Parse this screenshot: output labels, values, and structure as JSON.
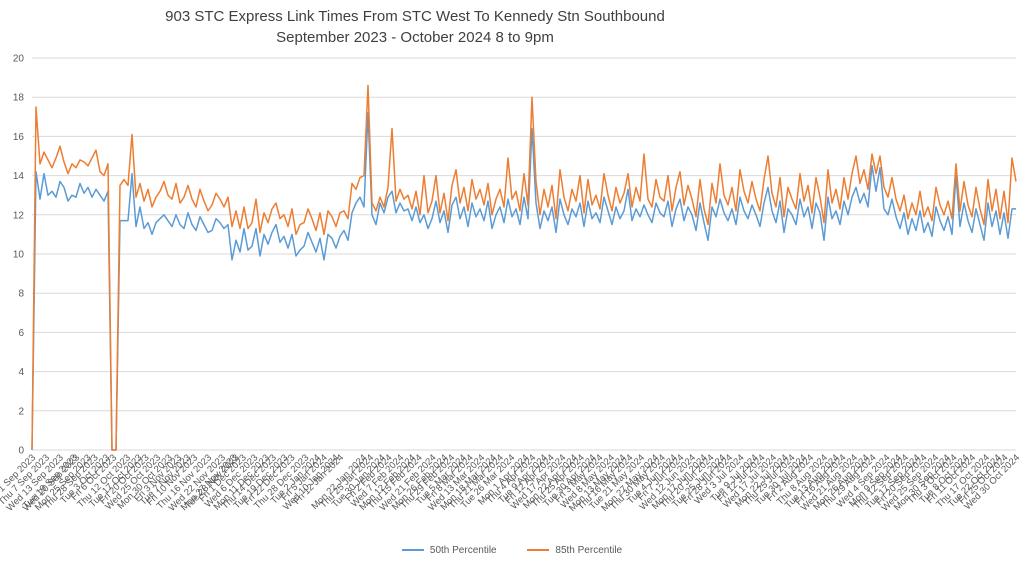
{
  "chart_data": {
    "type": "line",
    "title": "903 STC Express Link Times From STC West To Kennedy Stn Southbound",
    "subtitle": "September 2023 - October 2024 8 to 9pm",
    "xlabel": "",
    "ylabel": "",
    "ylim": [
      0,
      20
    ],
    "yticks": [
      0,
      2,
      4,
      6,
      8,
      10,
      12,
      14,
      16,
      18,
      20
    ],
    "grid": true,
    "legend": "bottom",
    "x_start": "2023-09-01",
    "x_end": "2024-10-30",
    "x_tick_labels": [
      "Fri 1 Sep 2023",
      "Thu 7 Sep 2023",
      "Wed 13 Sep 2023",
      "Tue 19 Sep 2023",
      "Wed 20 Sep 2023",
      "Mon 25 Sep 2023",
      "Thu 28 Sep 2023",
      "Tue 3 Oct 2023",
      "Fri 6 Oct 2023",
      "Thu 12 Oct 2023",
      "Tue 17 Oct 2023",
      "Fri 20 Oct 2023",
      "Wed 25 Oct 2023",
      "Mon 30 Oct 2023",
      "Fri 3 Nov 2023",
      "Tue 7 Nov 2023",
      "Fri 10 Nov 2023",
      "Thu 16 Nov 2023",
      "Wed 22 Nov 2023",
      "Mon 27 Nov 2023",
      "Tue 28 Nov 2023",
      "Fri 1 Dec 2023",
      "Wed 6 Dec 2023",
      "Mon 11 Dec 2023",
      "Thu 14 Dec 2023",
      "Tue 19 Dec 2023",
      "Fri 22 Dec 2023",
      "Thu 28 Dec 2023",
      "Tue 2 Jan 2024",
      "Fri 5 Jan 2024",
      "Wed 10 Jan 2024",
      "Fri 12 Jan 2024",
      "Mon 22 Jan 2024",
      "Thu 25 Jan 2024",
      "Tue 30 Jan 2024",
      "Fri 2 Feb 2024",
      "Wed 7 Feb 2024",
      "Mon 12 Feb 2024",
      "Thu 15 Feb 2024",
      "Wed 21 Feb 2024",
      "Mon 26 Feb 2024",
      "Thu 29 Feb 2024",
      "Tue 5 Mar 2024",
      "Fri 8 Mar 2024",
      "Wed 13 Mar 2024",
      "Mon 18 Mar 2024",
      "Thu 21 Mar 2024",
      "Tue 26 Mar 2024",
      "Mon 1 Apr 2024",
      "Thu 4 Apr 2024",
      "Tue 9 Apr 2024",
      "Fri 12 Apr 2024",
      "Wed 17 Apr 2024",
      "Mon 22 Apr 2024",
      "Thu 25 Apr 2024",
      "Tue 30 Apr 2024",
      "Fri 3 May 2024",
      "Wed 8 May 2024",
      "Mon 13 May 2024",
      "Thu 16 May 2024",
      "Tue 21 May 2024",
      "Mon 27 May 2024",
      "Thu 30 May 2024",
      "Tue 4 Jun 2024",
      "Fri 7 Jun 2024",
      "Wed 12 Jun 2024",
      "Mon 17 Jun 2024",
      "Thu 20 Jun 2024",
      "Tue 25 Jun 2024",
      "Fri 28 Jun 2024",
      "Wed 3 Jul 2024",
      "Tue 9 Jul 2024",
      "Fri 12 Jul 2024",
      "Wed 17 Jul 2024",
      "Mon 22 Jul 2024",
      "Thu 25 Jul 2024",
      "Tue 30 Jul 2024",
      "Fri 2 Aug 2024",
      "Thu 8 Aug 2024",
      "Tue 13 Aug 2024",
      "Fri 16 Aug 2024",
      "Wed 21 Aug 2024",
      "Mon 26 Aug 2024",
      "Thu 29 Aug 2024",
      "Wed 4 Sep 2024",
      "Mon 9 Sep 2024",
      "Thu 12 Sep 2024",
      "Tue 17 Sep 2024",
      "Fri 20 Sep 2024",
      "Wed 25 Sep 2024",
      "Mon 30 Sep 2024",
      "Thu 3 Oct 2024",
      "Tue 8 Oct 2024",
      "Fri 11 Oct 2024",
      "Thu 17 Oct 2024",
      "Tue 22 Oct 2024",
      "Fri 25 Oct 2024",
      "Wed 30 Oct 2024"
    ],
    "series": [
      {
        "name": "50th Percentile",
        "color": "#5b9bd5",
        "values": [
          0.0,
          14.2,
          12.8,
          14.1,
          13.0,
          13.2,
          12.9,
          13.7,
          13.4,
          12.7,
          13.0,
          12.9,
          13.6,
          13.1,
          13.4,
          12.9,
          13.3,
          13.0,
          12.7,
          13.2,
          0.0,
          0.0,
          11.7,
          11.7,
          11.7,
          14.1,
          11.4,
          12.4,
          11.3,
          11.6,
          11.0,
          11.6,
          11.8,
          12.0,
          11.7,
          11.4,
          12.0,
          11.5,
          11.3,
          12.1,
          11.5,
          11.2,
          11.9,
          11.5,
          11.1,
          11.2,
          11.8,
          11.6,
          11.3,
          11.5,
          9.7,
          10.7,
          10.1,
          11.3,
          10.2,
          10.4,
          11.3,
          9.9,
          11.0,
          10.5,
          11.1,
          11.5,
          10.6,
          10.9,
          10.3,
          11.0,
          9.9,
          10.2,
          10.4,
          11.1,
          10.6,
          10.1,
          10.8,
          9.7,
          11.0,
          10.8,
          10.3,
          10.9,
          11.2,
          10.7,
          12.1,
          12.6,
          12.9,
          12.4,
          17.2,
          12.0,
          11.5,
          12.6,
          12.1,
          12.9,
          13.2,
          12.1,
          12.6,
          12.2,
          12.3,
          11.7,
          12.4,
          11.6,
          12.0,
          11.3,
          11.8,
          12.7,
          11.6,
          12.2,
          11.1,
          12.5,
          12.9,
          11.8,
          12.4,
          11.4,
          12.6,
          11.9,
          12.3,
          11.7,
          12.7,
          11.3,
          12.0,
          12.4,
          11.6,
          12.8,
          11.9,
          12.3,
          11.5,
          12.9,
          11.8,
          16.4,
          12.6,
          11.3,
          12.2,
          11.7,
          12.4,
          11.1,
          12.8,
          12.0,
          11.5,
          12.3,
          11.9,
          12.6,
          11.4,
          12.7,
          11.8,
          12.1,
          11.6,
          12.9,
          12.2,
          11.5,
          12.4,
          11.8,
          12.2,
          13.3,
          11.7,
          12.3,
          11.9,
          12.5,
          12.0,
          11.6,
          12.6,
          12.1,
          11.9,
          12.7,
          11.4,
          12.3,
          12.8,
          11.7,
          12.4,
          12.0,
          11.2,
          12.6,
          11.6,
          10.7,
          12.4,
          11.9,
          12.8,
          12.1,
          11.7,
          12.3,
          11.5,
          12.9,
          12.2,
          11.8,
          12.5,
          12.0,
          11.4,
          12.6,
          13.4,
          12.2,
          11.6,
          12.7,
          11.1,
          12.3,
          12.0,
          11.5,
          12.8,
          11.9,
          12.4,
          11.3,
          12.6,
          12.1,
          10.7,
          12.9,
          11.8,
          12.2,
          11.5,
          12.7,
          12.0,
          12.9,
          13.4,
          12.6,
          13.1,
          12.4,
          14.5,
          13.2,
          14.4,
          12.3,
          12.0,
          12.8,
          11.9,
          11.3,
          12.1,
          11.0,
          11.8,
          11.2,
          12.2,
          11.1,
          11.6,
          10.9,
          12.4,
          11.7,
          11.2,
          11.9,
          11.0,
          14.0,
          11.4,
          12.6,
          11.7,
          11.1,
          12.3,
          11.5,
          10.7,
          12.6,
          11.4,
          12.2,
          11.0,
          12.1,
          10.8,
          12.3,
          12.3
        ]
      },
      {
        "name": "85th Percentile",
        "color": "#ed7d31",
        "values": [
          0.0,
          17.5,
          14.6,
          15.2,
          14.8,
          14.4,
          14.9,
          15.5,
          14.7,
          14.1,
          14.6,
          14.4,
          14.8,
          14.7,
          14.5,
          14.9,
          15.3,
          14.2,
          14.0,
          14.6,
          0.0,
          0.0,
          13.5,
          13.8,
          13.5,
          16.1,
          12.9,
          13.6,
          12.7,
          13.3,
          12.4,
          12.9,
          13.2,
          13.7,
          13.0,
          12.8,
          13.6,
          12.6,
          12.9,
          13.5,
          12.8,
          12.4,
          13.3,
          12.7,
          12.2,
          12.5,
          13.1,
          12.8,
          12.4,
          12.9,
          11.4,
          12.2,
          11.3,
          12.4,
          11.3,
          11.6,
          12.8,
          11.1,
          12.1,
          11.6,
          12.3,
          12.6,
          11.8,
          12.0,
          11.4,
          12.3,
          11.0,
          11.5,
          11.6,
          12.3,
          11.8,
          11.2,
          12.1,
          11.0,
          12.2,
          11.9,
          11.4,
          12.1,
          12.2,
          11.8,
          13.6,
          13.3,
          13.9,
          14.0,
          18.6,
          12.6,
          12.2,
          12.9,
          12.4,
          13.4,
          16.4,
          12.7,
          13.3,
          12.8,
          13.0,
          12.3,
          13.2,
          12.0,
          14.0,
          12.1,
          12.7,
          14.0,
          12.1,
          13.1,
          11.7,
          13.5,
          14.3,
          12.6,
          13.4,
          12.2,
          13.8,
          12.8,
          13.3,
          12.5,
          13.6,
          12.0,
          12.8,
          13.3,
          12.4,
          14.9,
          12.8,
          13.2,
          12.2,
          14.1,
          12.5,
          18.0,
          13.7,
          12.0,
          13.3,
          12.4,
          13.5,
          11.8,
          14.3,
          12.9,
          12.2,
          13.3,
          12.7,
          14.0,
          12.1,
          13.8,
          12.5,
          13.0,
          12.3,
          14.1,
          13.0,
          12.2,
          13.4,
          12.6,
          13.1,
          14.1,
          12.4,
          13.4,
          12.7,
          15.1,
          12.8,
          12.4,
          13.8,
          12.9,
          12.7,
          14.0,
          12.2,
          13.4,
          14.2,
          12.5,
          13.5,
          12.8,
          11.9,
          13.8,
          12.3,
          11.5,
          13.6,
          12.6,
          14.6,
          13.0,
          12.5,
          13.4,
          12.2,
          14.3,
          13.2,
          12.6,
          13.7,
          12.8,
          12.2,
          13.8,
          15.0,
          13.1,
          12.4,
          13.9,
          11.9,
          13.4,
          12.8,
          12.3,
          14.1,
          12.7,
          13.5,
          12.1,
          13.9,
          12.9,
          11.6,
          14.3,
          12.6,
          13.3,
          12.3,
          13.9,
          12.8,
          14.1,
          15.0,
          13.6,
          14.3,
          13.3,
          15.1,
          14.1,
          15.0,
          13.4,
          12.9,
          13.9,
          12.8,
          12.2,
          13.0,
          11.8,
          12.6,
          12.0,
          13.2,
          11.9,
          12.4,
          11.7,
          13.4,
          12.5,
          12.0,
          12.7,
          11.8,
          14.6,
          12.2,
          13.7,
          12.5,
          11.9,
          13.4,
          12.3,
          11.5,
          13.8,
          12.2,
          13.3,
          11.8,
          13.2,
          11.6,
          14.9,
          13.7
        ]
      }
    ]
  }
}
